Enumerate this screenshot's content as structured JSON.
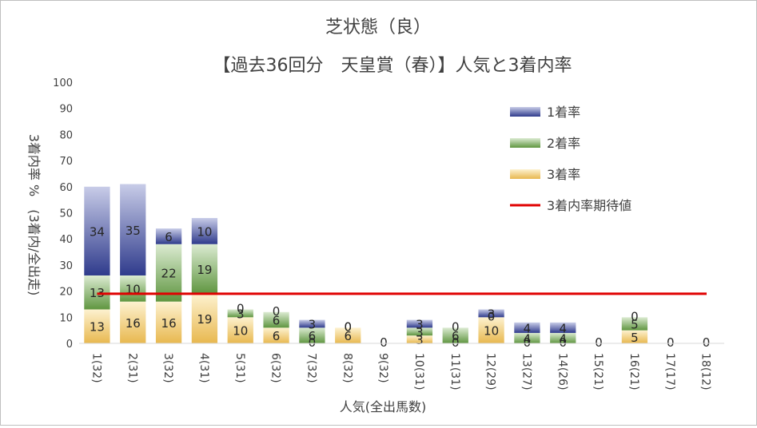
{
  "chart_data": {
    "type": "bar",
    "stacked": true,
    "title": "芝状態（良）",
    "subtitle": "【過去36回分　天皇賞（春）】人気と3着内率",
    "xlabel": "人気(全出馬数)",
    "ylabel": "3着内率 %　(3着内/全出走)",
    "ylim": [
      0,
      100
    ],
    "yticks": [
      0,
      10,
      20,
      30,
      40,
      50,
      60,
      70,
      80,
      90,
      100
    ],
    "grid": false,
    "legend_position": "right",
    "categories": [
      "1(32)",
      "2(31)",
      "3(32)",
      "4(31)",
      "5(31)",
      "6(32)",
      "7(32)",
      "8(32)",
      "9(32)",
      "10(31)",
      "11(31)",
      "12(29)",
      "13(27)",
      "14(26)",
      "15(21)",
      "16(21)",
      "17(17)",
      "18(12)"
    ],
    "series": [
      {
        "name": "3着率",
        "color": "#e8b84f",
        "values": [
          13,
          16,
          16,
          19,
          10,
          6,
          0,
          6,
          0,
          3,
          0,
          10,
          0,
          0,
          0,
          5,
          0,
          0
        ],
        "labels": [
          "13",
          "16",
          "16",
          "19",
          "10",
          "6",
          "0",
          "6",
          "",
          "3",
          "0",
          "10",
          "0",
          "0",
          "",
          "5",
          "",
          ""
        ]
      },
      {
        "name": "2着率",
        "color": "#5f9640",
        "values": [
          13,
          10,
          22,
          19,
          3,
          6,
          6,
          0,
          0,
          3,
          6,
          0,
          4,
          4,
          0,
          5,
          0,
          0
        ],
        "labels": [
          "13",
          "10",
          "22",
          "19",
          "3",
          "6",
          "6",
          "0",
          "",
          "3",
          "6",
          "0",
          "4",
          "4",
          "",
          "5",
          "",
          ""
        ]
      },
      {
        "name": "1着率",
        "color": "#2f3b8c",
        "values": [
          34,
          35,
          6,
          10,
          0,
          0,
          3,
          0,
          0,
          3,
          0,
          3,
          4,
          4,
          0,
          0,
          0,
          0
        ],
        "labels": [
          "34",
          "35",
          "6",
          "10",
          "0",
          "0",
          "3",
          "0",
          "0",
          "3",
          "0",
          "3",
          "4",
          "4",
          "0",
          "0",
          "0",
          "0"
        ]
      }
    ],
    "expected": {
      "name": "3着内率期待値",
      "color": "#e00000",
      "value": 19
    }
  }
}
